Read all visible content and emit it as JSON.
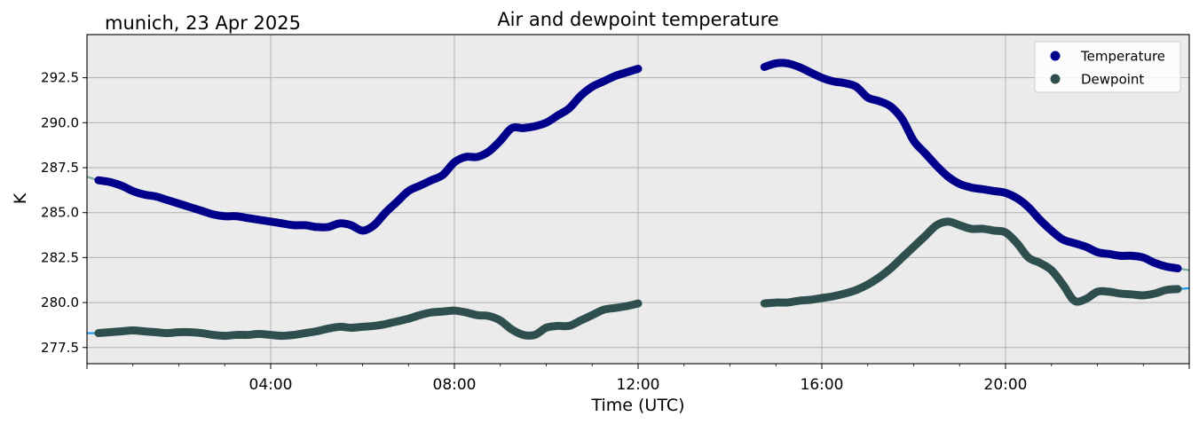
{
  "chart_data": {
    "type": "line",
    "title": "Air and dewpoint temperature",
    "subtitle": "munich, 23 Apr 2025",
    "xlabel": "Time (UTC)",
    "ylabel": "K",
    "xlim": [
      0,
      24
    ],
    "ylim": [
      276.6,
      294.9
    ],
    "x_ticks": [
      4,
      8,
      12,
      16,
      20
    ],
    "x_tick_labels": [
      "04:00",
      "08:00",
      "12:00",
      "16:00",
      "20:00"
    ],
    "y_ticks": [
      277.5,
      280.0,
      282.5,
      285.0,
      287.5,
      290.0,
      292.5
    ],
    "y_tick_labels": [
      "277.5",
      "280.0",
      "282.5",
      "285.0",
      "287.5",
      "290.0",
      "292.5"
    ],
    "grid": true,
    "legend_position": "top-right",
    "colors": {
      "plot_background": "#ebebeb",
      "grid": "#b0b0b0",
      "temperature_raw": "#7aa8a8",
      "temperature": "#00008b",
      "dewpoint_raw": "#1e9be6",
      "dewpoint": "#2f4f4f"
    },
    "series": [
      {
        "name": "Temperature",
        "x": [
          0.0,
          0.25,
          0.5,
          0.75,
          1.0,
          1.25,
          1.5,
          1.75,
          2.0,
          2.25,
          2.5,
          2.75,
          3.0,
          3.25,
          3.5,
          3.75,
          4.0,
          4.25,
          4.5,
          4.75,
          5.0,
          5.25,
          5.5,
          5.75,
          6.0,
          6.25,
          6.5,
          6.75,
          7.0,
          7.25,
          7.5,
          7.75,
          8.0,
          8.25,
          8.5,
          8.75,
          9.0,
          9.25,
          9.5,
          9.75,
          10.0,
          10.25,
          10.5,
          10.75,
          11.0,
          11.25,
          11.5,
          11.75,
          12.0,
          null,
          14.75,
          15.0,
          15.25,
          15.5,
          15.75,
          16.0,
          16.25,
          16.5,
          16.75,
          17.0,
          17.25,
          17.5,
          17.75,
          18.0,
          18.25,
          18.5,
          18.75,
          19.0,
          19.25,
          19.5,
          19.75,
          20.0,
          20.25,
          20.5,
          20.75,
          21.0,
          21.25,
          21.5,
          21.75,
          22.0,
          22.25,
          22.5,
          22.75,
          23.0,
          23.25,
          23.5,
          23.75,
          24.0
        ],
        "values": [
          287.0,
          286.8,
          286.7,
          286.5,
          286.2,
          286.0,
          285.9,
          285.7,
          285.5,
          285.3,
          285.1,
          284.9,
          284.8,
          284.8,
          284.7,
          284.6,
          284.5,
          284.4,
          284.3,
          284.3,
          284.2,
          284.2,
          284.4,
          284.3,
          284.0,
          284.3,
          285.0,
          285.6,
          286.2,
          286.5,
          286.8,
          287.1,
          287.8,
          288.1,
          288.1,
          288.4,
          289.0,
          289.7,
          289.7,
          289.8,
          290.0,
          290.4,
          290.8,
          291.5,
          292.0,
          292.3,
          292.6,
          292.8,
          293.0,
          null,
          293.1,
          293.3,
          293.3,
          293.1,
          292.8,
          292.5,
          292.3,
          292.2,
          292.0,
          291.4,
          291.2,
          290.9,
          290.2,
          289.0,
          288.3,
          287.6,
          287.0,
          286.6,
          286.4,
          286.3,
          286.2,
          286.1,
          285.8,
          285.3,
          284.6,
          284.0,
          283.5,
          283.3,
          283.1,
          282.8,
          282.7,
          282.6,
          282.6,
          282.5,
          282.2,
          282.0,
          281.9,
          281.8
        ]
      },
      {
        "name": "Dewpoint",
        "x": [
          0.0,
          0.25,
          0.5,
          0.75,
          1.0,
          1.25,
          1.5,
          1.75,
          2.0,
          2.25,
          2.5,
          2.75,
          3.0,
          3.25,
          3.5,
          3.75,
          4.0,
          4.25,
          4.5,
          4.75,
          5.0,
          5.25,
          5.5,
          5.75,
          6.0,
          6.25,
          6.5,
          6.75,
          7.0,
          7.25,
          7.5,
          7.75,
          8.0,
          8.25,
          8.5,
          8.75,
          9.0,
          9.25,
          9.5,
          9.75,
          10.0,
          10.25,
          10.5,
          10.75,
          11.0,
          11.25,
          11.5,
          11.75,
          12.0,
          null,
          14.75,
          15.0,
          15.25,
          15.5,
          15.75,
          16.0,
          16.25,
          16.5,
          16.75,
          17.0,
          17.25,
          17.5,
          17.75,
          18.0,
          18.25,
          18.5,
          18.75,
          19.0,
          19.25,
          19.5,
          19.75,
          20.0,
          20.25,
          20.5,
          20.75,
          21.0,
          21.25,
          21.5,
          21.75,
          22.0,
          22.25,
          22.5,
          22.75,
          23.0,
          23.25,
          23.5,
          23.75,
          24.0
        ],
        "values": [
          278.3,
          278.3,
          278.35,
          278.4,
          278.45,
          278.4,
          278.35,
          278.3,
          278.35,
          278.35,
          278.3,
          278.2,
          278.15,
          278.2,
          278.2,
          278.25,
          278.2,
          278.15,
          278.2,
          278.3,
          278.4,
          278.55,
          278.65,
          278.6,
          278.65,
          278.7,
          278.8,
          278.95,
          279.1,
          279.3,
          279.45,
          279.5,
          279.55,
          279.45,
          279.3,
          279.25,
          279.0,
          278.5,
          278.2,
          278.2,
          278.6,
          278.7,
          278.7,
          279.0,
          279.3,
          279.6,
          279.7,
          279.8,
          279.95,
          null,
          279.95,
          280.0,
          280.0,
          280.1,
          280.15,
          280.25,
          280.35,
          280.5,
          280.7,
          281.0,
          281.4,
          281.9,
          282.5,
          283.1,
          283.7,
          284.3,
          284.5,
          284.3,
          284.1,
          284.1,
          284.0,
          283.9,
          283.3,
          282.5,
          282.2,
          281.8,
          281.0,
          280.1,
          280.2,
          280.6,
          280.6,
          280.5,
          280.45,
          280.4,
          280.5,
          280.7,
          280.75,
          280.8
        ]
      }
    ]
  }
}
